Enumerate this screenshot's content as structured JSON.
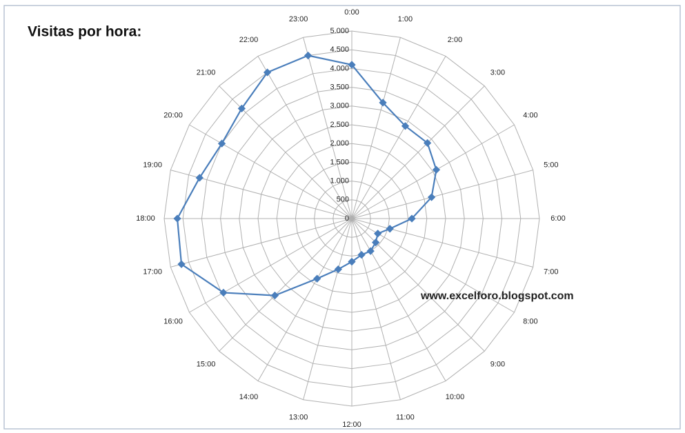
{
  "chart_data": {
    "type": "radar",
    "title": "Visitas por hora:",
    "annotation": "www.excelforo.blogspot.com",
    "categories": [
      "0:00",
      "1:00",
      "2:00",
      "3:00",
      "4:00",
      "5:00",
      "6:00",
      "7:00",
      "8:00",
      "9:00",
      "10:00",
      "11:00",
      "12:00",
      "13:00",
      "14:00",
      "15:00",
      "16:00",
      "17:00",
      "18:00",
      "19:00",
      "20:00",
      "21:00",
      "22:00",
      "23:00"
    ],
    "values": [
      4100,
      3200,
      2850,
      2850,
      2600,
      2200,
      1600,
      1050,
      800,
      900,
      1000,
      1000,
      1150,
      1400,
      1850,
      2900,
      3950,
      4700,
      4650,
      4200,
      4000,
      4150,
      4500,
      4500
    ],
    "color": "#4a7ebb",
    "ylim": [
      0,
      5000
    ],
    "yticks": [
      0,
      500,
      {
        "value": 1000,
        "label": "1.000"
      },
      {
        "value": 1500,
        "label": "1.500"
      },
      {
        "value": 2000,
        "label": "2.000"
      },
      {
        "value": 2500,
        "label": "2.500"
      },
      {
        "value": 3000,
        "label": "3.000"
      },
      {
        "value": 3500,
        "label": "3.500"
      },
      {
        "value": 4000,
        "label": "4.000"
      },
      {
        "value": 4500,
        "label": "4.500"
      },
      {
        "value": 5000,
        "label": "5.000"
      }
    ],
    "grid": true
  }
}
